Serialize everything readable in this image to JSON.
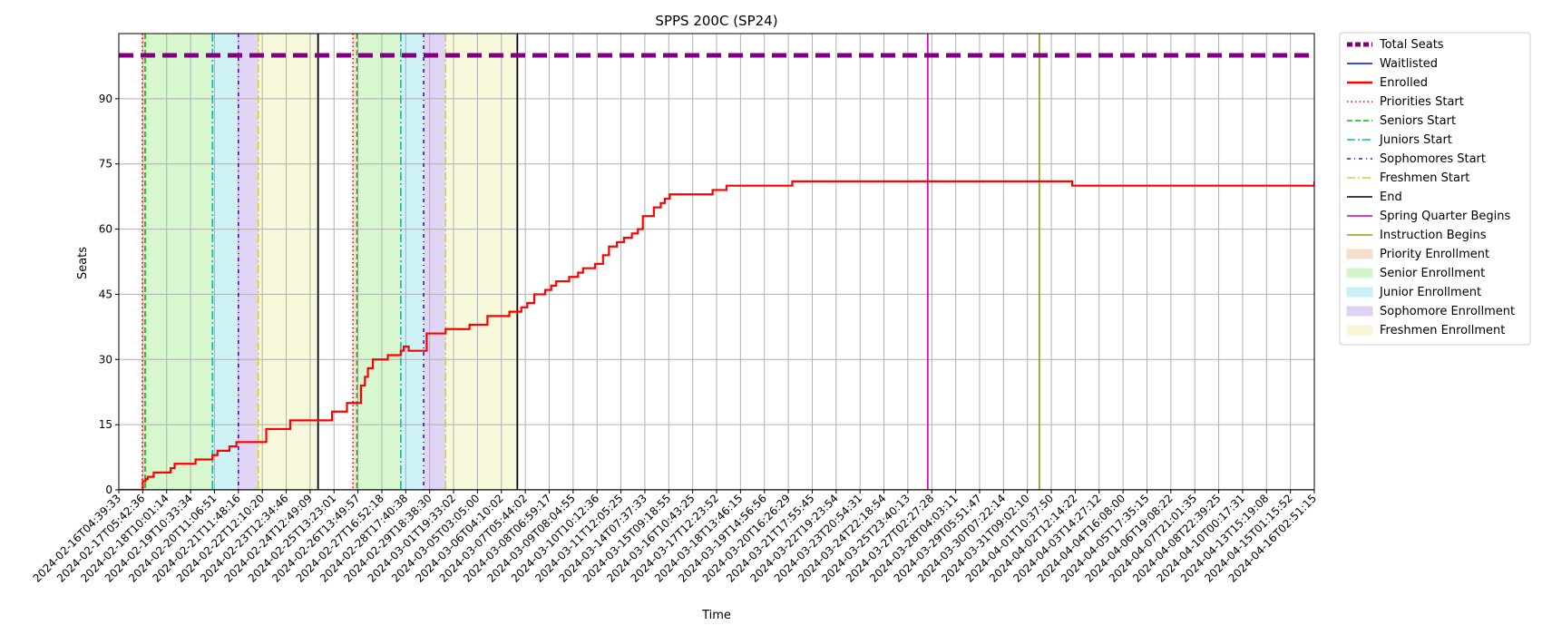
{
  "chart_data": {
    "type": "line",
    "title": "SPPS 200C (SP24)",
    "xlabel": "Time",
    "ylabel": "Seats",
    "ylim": [
      0,
      105
    ],
    "yticks": [
      0,
      15,
      30,
      45,
      60,
      75,
      90
    ],
    "xlim_days": [
      0,
      60.0
    ],
    "grid": true,
    "legend_position": "outside right",
    "x_tick_labels": [
      "2024-02-16T04:39:33",
      "2024-02-17T05:42:36",
      "2024-02-18T10:01:14",
      "2024-02-19T10:33:34",
      "2024-02-20T11:06:51",
      "2024-02-21T11:48:16",
      "2024-02-22T12:10:20",
      "2024-02-23T12:34:46",
      "2024-02-24T12:49:09",
      "2024-02-25T13:23:01",
      "2024-02-26T13:49:57",
      "2024-02-27T16:52:18",
      "2024-02-28T17:40:38",
      "2024-02-29T18:38:30",
      "2024-03-01T19:33:02",
      "2024-03-05T03:05:00",
      "2024-03-06T04:10:02",
      "2024-03-07T05:44:02",
      "2024-03-08T06:59:17",
      "2024-03-09T08:04:55",
      "2024-03-10T10:12:36",
      "2024-03-11T12:05:25",
      "2024-03-14T07:37:33",
      "2024-03-15T09:18:55",
      "2024-03-16T10:43:25",
      "2024-03-17T12:23:52",
      "2024-03-18T13:46:15",
      "2024-03-19T14:56:56",
      "2024-03-20T16:26:29",
      "2024-03-21T17:55:45",
      "2024-03-22T19:23:54",
      "2024-03-23T20:54:31",
      "2024-03-24T22:18:54",
      "2024-03-25T23:40:13",
      "2024-03-27T02:27:28",
      "2024-03-28T04:03:11",
      "2024-03-29T05:51:47",
      "2024-03-30T07:22:14",
      "2024-03-31T09:02:10",
      "2024-04-01T10:37:50",
      "2024-04-02T12:14:22",
      "2024-04-03T14:27:12",
      "2024-04-04T16:08:00",
      "2024-04-05T17:35:15",
      "2024-04-06T19:08:22",
      "2024-04-07T21:01:35",
      "2024-04-08T22:39:25",
      "2024-04-10T00:17:31",
      "2024-04-13T15:19:08",
      "2024-04-15T01:15:52",
      "2024-04-16T02:51:15"
    ],
    "series": [
      {
        "name": "Total Seats",
        "color": "#800080",
        "style": "dashed-thick",
        "x": [
          0,
          60.0
        ],
        "values": [
          100,
          100
        ]
      },
      {
        "name": "Waitlisted",
        "color": "#0000ff",
        "style": "solid",
        "x": [
          0,
          60.0
        ],
        "values": [
          0,
          0
        ]
      },
      {
        "name": "Enrolled",
        "color": "#ff0000",
        "style": "solid-step",
        "x": [
          0,
          1.2,
          1.35,
          1.45,
          1.6,
          1.75,
          2.35,
          2.6,
          2.8,
          3.6,
          3.85,
          4.1,
          4.7,
          4.95,
          5.25,
          5.55,
          5.7,
          5.9,
          6.15,
          7.4,
          7.55,
          8.6,
          8.75,
          10.7,
          11.0,
          11.2,
          11.45,
          11.9,
          12.15,
          12.35,
          12.5,
          12.75,
          13.5,
          14.0,
          14.15,
          14.3,
          14.55,
          15.45,
          16.4,
          17.6,
          18.5,
          18.8,
          19.6,
          20.2,
          20.5,
          20.85,
          21.4,
          21.7,
          21.95,
          22.6,
          23.05,
          23.3,
          23.9,
          24.3,
          24.6,
          25.0,
          25.35,
          25.75,
          26.05,
          26.3,
          26.85,
          27.2,
          27.4,
          27.65,
          28.0,
          29.8,
          30.1,
          30.5,
          31.2,
          33.8,
          34.2,
          35.7,
          37.5,
          47.6,
          47.85,
          60.0
        ],
        "values": [
          0,
          2,
          2.5,
          3,
          3,
          4,
          4,
          5,
          6,
          6,
          7,
          7,
          8,
          9,
          9,
          10,
          10,
          11,
          11,
          14,
          14,
          16,
          16,
          18,
          18,
          18,
          20,
          20,
          24,
          26,
          28,
          30,
          31,
          31,
          32,
          33,
          32,
          36,
          37,
          38,
          40,
          40,
          41,
          42,
          43,
          45,
          46,
          47,
          48,
          49,
          50,
          51,
          52,
          54,
          56,
          57,
          58,
          59,
          60,
          63,
          65,
          66,
          67,
          68,
          68,
          69,
          69,
          70,
          70,
          71,
          71,
          71,
          71,
          71,
          70,
          71
        ]
      }
    ],
    "vertical_lines": [
      {
        "name": "Priorities Start",
        "x": 1.18,
        "color": "#ff0000",
        "style": "dotted"
      },
      {
        "name": "Priorities Start",
        "x": 11.75,
        "color": "#ff0000",
        "style": "dotted"
      },
      {
        "name": "Seniors Start",
        "x": 1.32,
        "color": "#00bb00",
        "style": "dashed"
      },
      {
        "name": "Seniors Start",
        "x": 11.95,
        "color": "#00bb00",
        "style": "dashed"
      },
      {
        "name": "Juniors Start",
        "x": 4.7,
        "color": "#00bfbf",
        "style": "dashdot"
      },
      {
        "name": "Juniors Start",
        "x": 14.15,
        "color": "#00bfbf",
        "style": "dashdot"
      },
      {
        "name": "Sophomores Start",
        "x": 6.0,
        "color": "#5500cc",
        "style": "dashdot-dense"
      },
      {
        "name": "Sophomores Start",
        "x": 15.3,
        "color": "#5500cc",
        "style": "dashdot-dense"
      },
      {
        "name": "Freshmen Start",
        "x": 7.0,
        "color": "#d4cf3a",
        "style": "dashdot"
      },
      {
        "name": "Freshmen Start",
        "x": 16.4,
        "color": "#d4cf3a",
        "style": "dashdot"
      },
      {
        "name": "End",
        "x": 10.0,
        "color": "#000000",
        "style": "solid"
      },
      {
        "name": "End",
        "x": 20.0,
        "color": "#000000",
        "style": "solid"
      },
      {
        "name": "Spring Quarter Begins",
        "x": 40.6,
        "color": "#cc00aa",
        "style": "solid"
      },
      {
        "name": "Instruction Begins",
        "x": 46.2,
        "color": "#7fa800",
        "style": "solid"
      }
    ],
    "spans": [
      {
        "name": "Priority Enrollment",
        "x0": 1.18,
        "x1": 1.32,
        "color": "#f4c7b0"
      },
      {
        "name": "Priority Enrollment",
        "x0": 11.75,
        "x1": 11.95,
        "color": "#f4c7b0"
      },
      {
        "name": "Senior Enrollment",
        "x0": 1.32,
        "x1": 4.7,
        "color": "#b6f0a8"
      },
      {
        "name": "Senior Enrollment",
        "x0": 11.95,
        "x1": 14.15,
        "color": "#b6f0a8"
      },
      {
        "name": "Junior Enrollment",
        "x0": 4.7,
        "x1": 6.0,
        "color": "#a6e7ec"
      },
      {
        "name": "Junior Enrollment",
        "x0": 14.15,
        "x1": 15.3,
        "color": "#a6e7ec"
      },
      {
        "name": "Sophomore Enrollment",
        "x0": 6.0,
        "x1": 7.0,
        "color": "#c9b3ee"
      },
      {
        "name": "Sophomore Enrollment",
        "x0": 15.3,
        "x1": 16.4,
        "color": "#c9b3ee"
      },
      {
        "name": "Freshmen Enrollment",
        "x0": 7.0,
        "x1": 10.0,
        "color": "#f3f3bd"
      },
      {
        "name": "Freshmen Enrollment",
        "x0": 16.4,
        "x1": 20.0,
        "color": "#f3f3bd"
      }
    ],
    "legend": [
      {
        "label": "Total Seats",
        "kind": "line",
        "color": "#800080",
        "style": "dashed-thick"
      },
      {
        "label": "Waitlisted",
        "kind": "line",
        "color": "#0000ff",
        "style": "solid"
      },
      {
        "label": "Enrolled",
        "kind": "line",
        "color": "#ff0000",
        "style": "solid-thick"
      },
      {
        "label": "Priorities Start",
        "kind": "line",
        "color": "#ff0000",
        "style": "dotted"
      },
      {
        "label": "Seniors Start",
        "kind": "line",
        "color": "#00bb00",
        "style": "dashed"
      },
      {
        "label": "Juniors Start",
        "kind": "line",
        "color": "#00bfbf",
        "style": "dashdot"
      },
      {
        "label": "Sophomores Start",
        "kind": "line",
        "color": "#5500cc",
        "style": "dashdot-dense"
      },
      {
        "label": "Freshmen Start",
        "kind": "line",
        "color": "#d4cf3a",
        "style": "dashdot"
      },
      {
        "label": "End",
        "kind": "line",
        "color": "#000000",
        "style": "solid"
      },
      {
        "label": "Spring Quarter Begins",
        "kind": "line",
        "color": "#cc00aa",
        "style": "solid"
      },
      {
        "label": "Instruction Begins",
        "kind": "line",
        "color": "#7fa800",
        "style": "solid"
      },
      {
        "label": "Priority Enrollment",
        "kind": "patch",
        "color": "#f4c7b0"
      },
      {
        "label": "Senior Enrollment",
        "kind": "patch",
        "color": "#b6f0a8"
      },
      {
        "label": "Junior Enrollment",
        "kind": "patch",
        "color": "#a6e7ec"
      },
      {
        "label": "Sophomore Enrollment",
        "kind": "patch",
        "color": "#c9b3ee"
      },
      {
        "label": "Freshmen Enrollment",
        "kind": "patch",
        "color": "#f3f3bd"
      }
    ]
  }
}
